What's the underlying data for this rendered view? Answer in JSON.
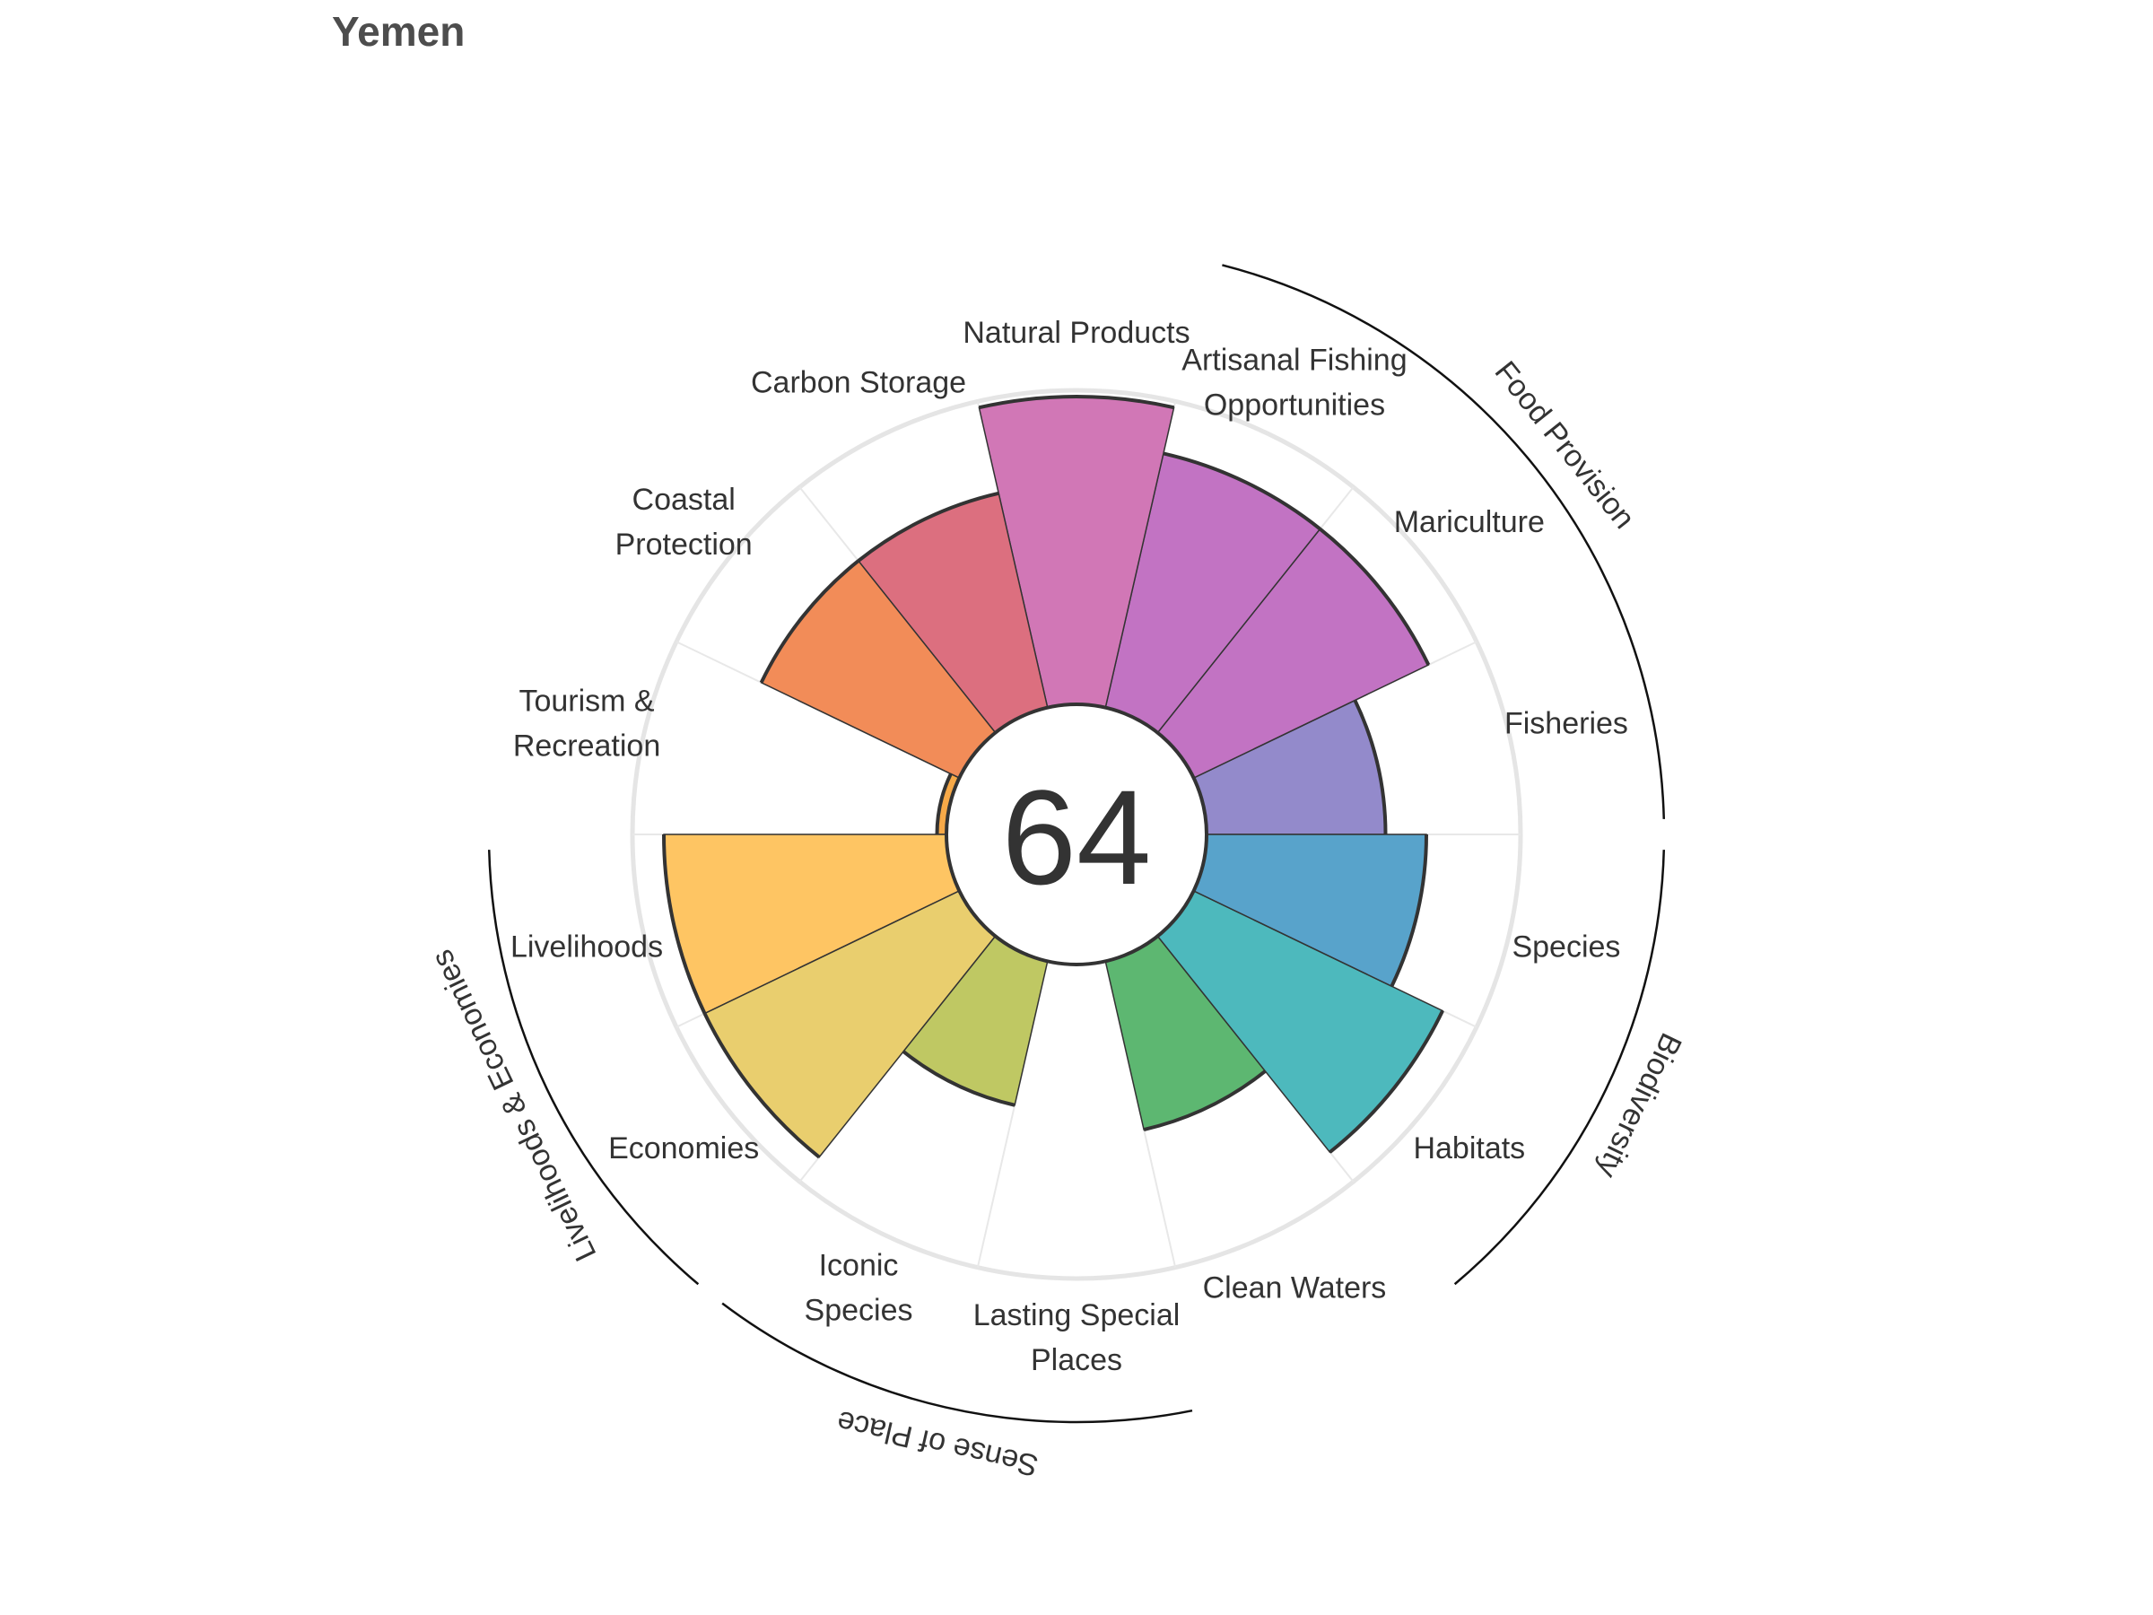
{
  "chart_data": {
    "type": "flower",
    "title": "Yemen",
    "overall_score": "64",
    "rlim": [
      0,
      100
    ],
    "petals": [
      {
        "name": "Fisheries",
        "label": [
          "Fisheries"
        ],
        "value": 57,
        "color": "#938ACB"
      },
      {
        "name": "Mariculture",
        "label": [
          "Mariculture"
        ],
        "value": 83,
        "color": "#C273C3"
      },
      {
        "name": "Artisanal Fishing Opportunities",
        "label": [
          "Artisanal Fishing",
          "Opportunities"
        ],
        "value": 83,
        "color": "#C273C3"
      },
      {
        "name": "Natural Products",
        "label": [
          "Natural Products"
        ],
        "value": 98,
        "color": "#D177B6"
      },
      {
        "name": "Carbon Storage",
        "label": [
          "Carbon Storage"
        ],
        "value": 70,
        "color": "#DC6F7F"
      },
      {
        "name": "Coastal Protection",
        "label": [
          "Coastal",
          "Protection"
        ],
        "value": 70,
        "color": "#F28C58"
      },
      {
        "name": "Tourism & Recreation",
        "label": [
          "Tourism &",
          "Recreation"
        ],
        "value": 3,
        "color": "#F7A948"
      },
      {
        "name": "Livelihoods",
        "label": [
          "Livelihoods"
        ],
        "value": 90,
        "color": "#FEC563"
      },
      {
        "name": "Economies",
        "label": [
          "Economies"
        ],
        "value": 90,
        "color": "#E9CE6E"
      },
      {
        "name": "Iconic Species",
        "label": [
          "Iconic",
          "Species"
        ],
        "value": 47,
        "color": "#BFC863"
      },
      {
        "name": "Lasting Special Places",
        "label": [
          "Lasting Special",
          "Places"
        ],
        "value": 0,
        "color": "#A3C563"
      },
      {
        "name": "Clean Waters",
        "label": [
          "Clean Waters"
        ],
        "value": 55,
        "color": "#5DB771"
      },
      {
        "name": "Habitats",
        "label": [
          "Habitats"
        ],
        "value": 88,
        "color": "#4DB9BD"
      },
      {
        "name": "Species",
        "label": [
          "Species"
        ],
        "value": 70,
        "color": "#58A3CB"
      }
    ],
    "groups": [
      {
        "name": "Food Provision",
        "from": 0,
        "to": 2
      },
      {
        "name": "Biodiversity",
        "from": 12,
        "to": 13
      },
      {
        "name": "Sense of Place",
        "from": 9,
        "to": 10
      },
      {
        "name": "Livelihoods & Economies",
        "from": 7,
        "to": 8
      }
    ]
  }
}
